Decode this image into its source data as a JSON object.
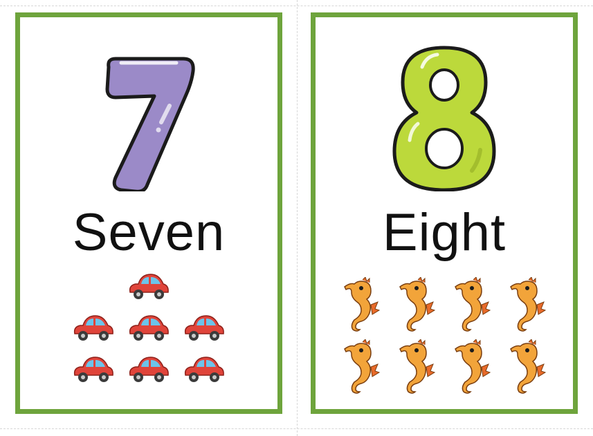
{
  "cards": [
    {
      "numeral": "7",
      "word": "Seven",
      "counter_icon": "car-icon",
      "count": 7,
      "numeral_color": "#9b8ac8"
    },
    {
      "numeral": "8",
      "word": "Eight",
      "counter_icon": "seahorse-icon",
      "count": 8,
      "numeral_color": "#bcd93b"
    }
  ],
  "colors": {
    "card_border": "#6ea43c",
    "car_body": "#e0443a",
    "seahorse_body": "#f2a43a"
  }
}
